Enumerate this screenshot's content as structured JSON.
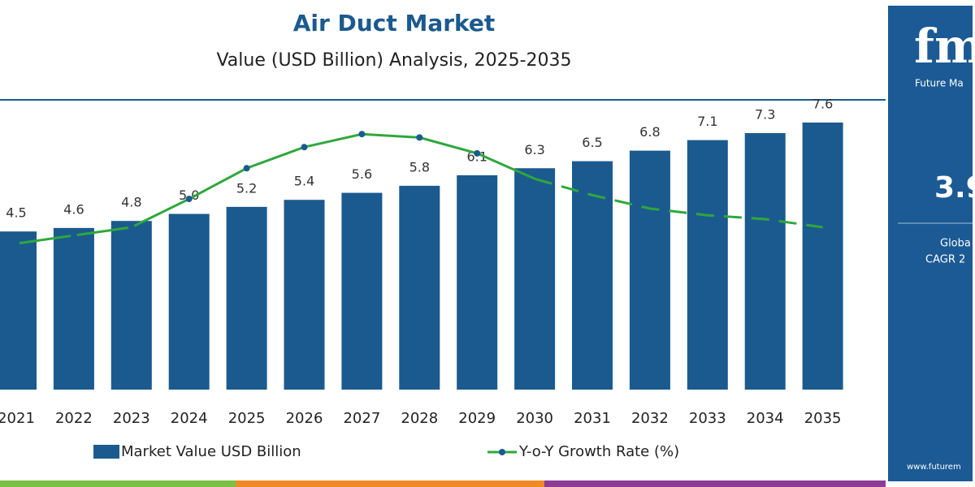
{
  "chart_data": {
    "type": "bar_line",
    "title": "Air Duct Market",
    "subtitle": "Value (USD Billion) Analysis, 2025-2035",
    "categories": [
      "2021",
      "2022",
      "2023",
      "2024",
      "2025",
      "2026",
      "2027",
      "2028",
      "2029",
      "2030",
      "2031",
      "2032",
      "2033",
      "2034",
      "2035"
    ],
    "series": [
      {
        "name": "Market Value USD Billion",
        "color": "#1b5a8e",
        "values": [
          4.5,
          4.6,
          4.8,
          5.0,
          5.2,
          5.4,
          5.6,
          5.8,
          6.1,
          6.3,
          6.5,
          6.8,
          7.1,
          7.3,
          7.6
        ],
        "value_labels": [
          "4.5",
          "4.6",
          "4.8",
          "5.0",
          "5.2",
          "5.4",
          "5.6",
          "5.8",
          "6.1",
          "6.3",
          "6.5",
          "6.8",
          "7.1",
          "7.3",
          "7.6"
        ]
      },
      {
        "name": "Y-o-Y Growth Rate (%)",
        "color": "#2ea83c",
        "axis": "y2",
        "dashed_from": "2030",
        "values": [
          3.04,
          3.21,
          3.38,
          3.97,
          4.61,
          5.05,
          5.32,
          5.25,
          4.92,
          4.39,
          4.05,
          3.77,
          3.63,
          3.55,
          3.38
        ]
      }
    ],
    "ylim": [
      0,
      8.2
    ],
    "y2lim": [
      0,
      6
    ]
  },
  "panel": {
    "logo": "fmi",
    "logo_caption": "Future Ma",
    "cagr": "3.9",
    "line1": "Globa",
    "line2": "CAGR 2",
    "website": "www.futurem"
  }
}
